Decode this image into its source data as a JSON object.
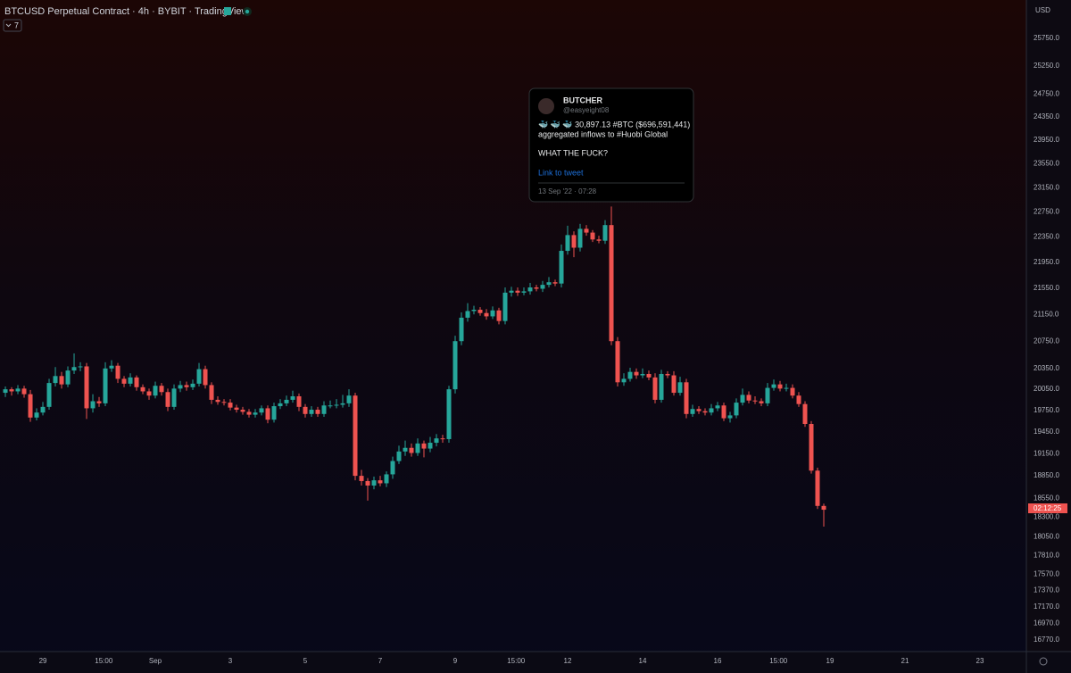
{
  "header": {
    "symbol": "BTCUSD Perpetual Contract · 4h · BYBIT · TradingView",
    "indicator_count": "7",
    "currency": "USD",
    "countdown": "02:12:25"
  },
  "tweet": {
    "name": "BUTCHER",
    "handle": "@easyeight08",
    "line1": "🐳 🐳 🐳 30,897.13 #BTC ($696,591,441)",
    "line2": "aggregated inflows to #Huobi Global",
    "line3": "WHAT THE FUCK?",
    "link": "Link to tweet",
    "date": "13 Sep '22 · 07:28"
  },
  "chart_data": {
    "type": "candlestick",
    "up_color": "#26a69a",
    "down_color": "#ef5350",
    "log_scale": true,
    "grid": false,
    "ylim": [
      16630,
      26464
    ],
    "yticks": [
      {
        "value": 25750,
        "label": "25750.0"
      },
      {
        "value": 25250,
        "label": "25250.0"
      },
      {
        "value": 24750,
        "label": "24750.0"
      },
      {
        "value": 24350,
        "label": "24350.0"
      },
      {
        "value": 23950,
        "label": "23950.0"
      },
      {
        "value": 23550,
        "label": "23550.0"
      },
      {
        "value": 23150,
        "label": "23150.0"
      },
      {
        "value": 22750,
        "label": "22750.0"
      },
      {
        "value": 22350,
        "label": "22350.0"
      },
      {
        "value": 21950,
        "label": "21950.0"
      },
      {
        "value": 21550,
        "label": "21550.0"
      },
      {
        "value": 21150,
        "label": "21150.0"
      },
      {
        "value": 20750,
        "label": "20750.0"
      },
      {
        "value": 20350,
        "label": "20350.0"
      },
      {
        "value": 20050,
        "label": "20050.0"
      },
      {
        "value": 19750,
        "label": "19750.0"
      },
      {
        "value": 19450,
        "label": "19450.0"
      },
      {
        "value": 19150,
        "label": "19150.0"
      },
      {
        "value": 18850,
        "label": "18850.0"
      },
      {
        "value": 18550,
        "label": "18550.0"
      },
      {
        "value": 18300,
        "label": "18300.0"
      },
      {
        "value": 18050,
        "label": "18050.0"
      },
      {
        "value": 17810,
        "label": "17810.0"
      },
      {
        "value": 17570,
        "label": "17570.0"
      },
      {
        "value": 17370,
        "label": "17370.0"
      },
      {
        "value": 17170,
        "label": "17170.0"
      },
      {
        "value": 16970,
        "label": "16970.0"
      },
      {
        "value": 16770,
        "label": "16770.0"
      }
    ],
    "xlim": [
      -0.86,
      163.43
    ],
    "xticks": [
      {
        "value": 6,
        "label": "29"
      },
      {
        "value": 15.75,
        "label": "15:00"
      },
      {
        "value": 24,
        "label": "Sep"
      },
      {
        "value": 36,
        "label": "3"
      },
      {
        "value": 48,
        "label": "5"
      },
      {
        "value": 60,
        "label": "7"
      },
      {
        "value": 72,
        "label": "9"
      },
      {
        "value": 81.75,
        "label": "15:00"
      },
      {
        "value": 90,
        "label": "12"
      },
      {
        "value": 102,
        "label": "14"
      },
      {
        "value": 114,
        "label": "16"
      },
      {
        "value": 123.75,
        "label": "15:00"
      },
      {
        "value": 132,
        "label": "19"
      },
      {
        "value": 144,
        "label": "21"
      },
      {
        "value": 156,
        "label": "23"
      }
    ],
    "x": [
      0,
      1,
      2,
      3,
      4,
      5,
      6,
      7,
      8,
      9,
      10,
      11,
      12,
      13,
      14,
      15,
      16,
      17,
      18,
      19,
      20,
      21,
      22,
      23,
      24,
      25,
      26,
      27,
      28,
      29,
      30,
      31,
      32,
      33,
      34,
      35,
      36,
      37,
      38,
      39,
      40,
      41,
      42,
      43,
      44,
      45,
      46,
      47,
      48,
      49,
      50,
      51,
      52,
      53,
      54,
      55,
      56,
      57,
      58,
      59,
      60,
      61,
      62,
      63,
      64,
      65,
      66,
      67,
      68,
      69,
      70,
      71,
      72,
      73,
      74,
      75,
      76,
      77,
      78,
      79,
      80,
      81,
      82,
      83,
      84,
      85,
      86,
      87,
      88,
      89,
      90,
      91,
      92,
      93,
      94,
      95,
      96,
      97,
      98,
      99,
      100,
      101,
      102,
      103,
      104,
      105,
      106,
      107,
      108,
      109,
      110,
      111,
      112,
      113,
      114,
      115,
      116,
      117,
      118,
      119,
      120,
      121,
      122,
      123,
      124,
      125,
      126,
      127,
      128,
      129,
      130,
      131
    ],
    "open": [
      20000,
      20050,
      20020,
      20060,
      19980,
      19650,
      19720,
      19800,
      20140,
      20240,
      20120,
      20320,
      20370,
      20380,
      19780,
      19880,
      19850,
      20350,
      20390,
      20200,
      20130,
      20220,
      20080,
      20020,
      19960,
      20100,
      20010,
      19800,
      20060,
      20110,
      20080,
      20130,
      20340,
      20110,
      19900,
      19870,
      19860,
      19790,
      19760,
      19730,
      19690,
      19720,
      19780,
      19620,
      19810,
      19850,
      19900,
      19950,
      19800,
      19700,
      19760,
      19700,
      19820,
      19820,
      19830,
      19850,
      19960,
      18850,
      18780,
      18720,
      18790,
      18750,
      18870,
      19050,
      19180,
      19230,
      19160,
      19290,
      19220,
      19300,
      19360,
      19350,
      20050,
      20750,
      21100,
      21200,
      21220,
      21170,
      21120,
      21210,
      21050,
      21480,
      21510,
      21480,
      21500,
      21560,
      21540,
      21600,
      21640,
      21620,
      22130,
      22380,
      22180,
      22480,
      22420,
      22310,
      22290,
      22540,
      20750,
      20150,
      20200,
      20300,
      20250,
      20270,
      20220,
      19900,
      20270,
      20250,
      20000,
      20150,
      19700,
      19770,
      19740,
      19720,
      19780,
      19820,
      19640,
      19680,
      19860,
      19970,
      19890,
      19880,
      19850,
      20070,
      20120,
      20060,
      20070,
      19960,
      19840,
      19560,
      18920,
      18450
    ],
    "high": [
      20090,
      20080,
      20110,
      20100,
      20040,
      19780,
      19870,
      20200,
      20370,
      20300,
      20380,
      20570,
      20440,
      20430,
      19980,
      19940,
      20440,
      20470,
      20430,
      20240,
      20280,
      20250,
      20120,
      20060,
      20160,
      20140,
      20060,
      20120,
      20170,
      20160,
      20190,
      20430,
      20390,
      20150,
      19950,
      19910,
      19910,
      19830,
      19800,
      19770,
      19770,
      19820,
      19820,
      19860,
      19910,
      19960,
      20030,
      19990,
      19840,
      19810,
      19800,
      19880,
      19890,
      19910,
      19970,
      20050,
      20000,
      18930,
      18820,
      18840,
      18850,
      18910,
      19110,
      19260,
      19330,
      19290,
      19360,
      19330,
      19380,
      19420,
      19410,
      20100,
      20830,
      21180,
      21320,
      21280,
      21260,
      21230,
      21270,
      21250,
      21560,
      21570,
      21560,
      21560,
      21630,
      21600,
      21660,
      21720,
      21680,
      22230,
      22530,
      22440,
      22560,
      22540,
      22460,
      22370,
      22620,
      22840,
      20810,
      20280,
      20360,
      20350,
      20350,
      20320,
      20280,
      20330,
      20310,
      20310,
      20230,
      20200,
      19830,
      19810,
      19780,
      19840,
      19870,
      19860,
      19730,
      19920,
      20060,
      20020,
      19950,
      19920,
      20140,
      20190,
      20170,
      20130,
      20120,
      20010,
      19880,
      19600,
      18960,
      18480
    ],
    "low": [
      19940,
      19960,
      19980,
      19930,
      19590,
      19610,
      19680,
      19760,
      20090,
      20060,
      20080,
      20270,
      20310,
      19630,
      19720,
      19800,
      19810,
      20300,
      20140,
      20080,
      20090,
      20030,
      19980,
      19900,
      19920,
      19960,
      19740,
      19760,
      20010,
      20030,
      20040,
      20090,
      20060,
      19840,
      19830,
      19820,
      19750,
      19720,
      19690,
      19650,
      19650,
      19680,
      19570,
      19580,
      19770,
      19810,
      19860,
      19740,
      19650,
      19660,
      19660,
      19660,
      19780,
      19780,
      19790,
      19800,
      18790,
      18720,
      18520,
      18670,
      18710,
      18700,
      18810,
      19010,
      19120,
      19110,
      19120,
      19100,
      19170,
      19250,
      19300,
      19300,
      19990,
      20690,
      21040,
      21150,
      21130,
      21070,
      21080,
      21000,
      21000,
      21420,
      21430,
      21440,
      21450,
      21500,
      21490,
      21560,
      21580,
      21560,
      22070,
      22030,
      22120,
      22370,
      22270,
      22250,
      22240,
      20690,
      20090,
      20100,
      20160,
      20200,
      20210,
      20180,
      19850,
      19860,
      20210,
      19960,
      19960,
      19640,
      19660,
      19700,
      19680,
      19680,
      19740,
      19600,
      19580,
      19640,
      19820,
      19850,
      19840,
      19810,
      19810,
      20030,
      20020,
      20020,
      19920,
      19800,
      19520,
      18880,
      18410,
      18180
    ],
    "close": [
      20050,
      20020,
      20060,
      19980,
      19650,
      19720,
      19800,
      20140,
      20240,
      20120,
      20320,
      20370,
      20380,
      19780,
      19880,
      19850,
      20350,
      20390,
      20200,
      20130,
      20220,
      20080,
      20020,
      19960,
      20100,
      20010,
      19800,
      20060,
      20110,
      20080,
      20130,
      20340,
      20110,
      19900,
      19870,
      19860,
      19790,
      19760,
      19730,
      19690,
      19720,
      19780,
      19620,
      19810,
      19850,
      19900,
      19950,
      19800,
      19700,
      19760,
      19700,
      19820,
      19820,
      19830,
      19850,
      19960,
      18850,
      18780,
      18720,
      18790,
      18750,
      18870,
      19050,
      19180,
      19230,
      19160,
      19290,
      19220,
      19300,
      19360,
      19350,
      20050,
      20750,
      21100,
      21200,
      21220,
      21170,
      21120,
      21210,
      21050,
      21480,
      21510,
      21480,
      21500,
      21560,
      21540,
      21600,
      21640,
      21620,
      22130,
      22380,
      22180,
      22480,
      22420,
      22310,
      22290,
      22540,
      20750,
      20150,
      20200,
      20300,
      20250,
      20270,
      20220,
      19900,
      20270,
      20250,
      20000,
      20150,
      19700,
      19770,
      19740,
      19720,
      19780,
      19820,
      19640,
      19680,
      19860,
      19970,
      19890,
      19880,
      19850,
      20070,
      20120,
      20060,
      20070,
      19960,
      19840,
      19560,
      18920,
      18450,
      18400
    ]
  }
}
